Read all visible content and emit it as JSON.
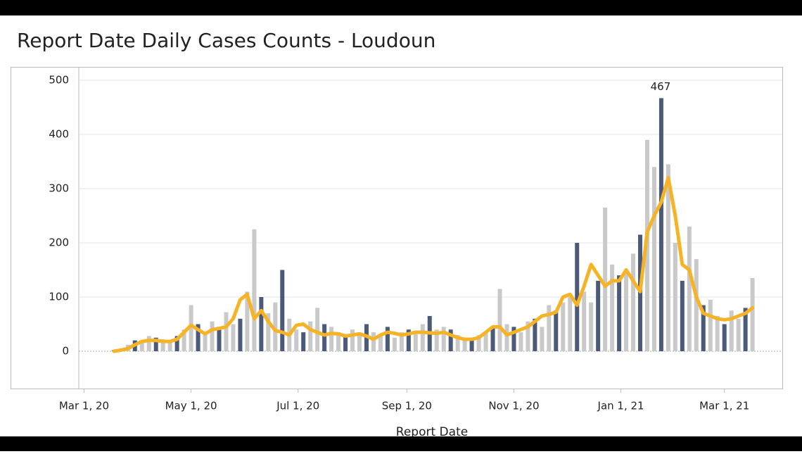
{
  "chart_data": {
    "type": "bar",
    "title": "Report Date Daily Cases Counts - Loudoun",
    "xlabel": "Report Date",
    "x": [
      17,
      21,
      25,
      29,
      33,
      37,
      41,
      45,
      49,
      53,
      57,
      61,
      65,
      69,
      73,
      77,
      81,
      85,
      89,
      93,
      97,
      101,
      105,
      109,
      113,
      117,
      121,
      125,
      129,
      133,
      137,
      141,
      145,
      149,
      153,
      157,
      161,
      165,
      169,
      173,
      177,
      181,
      185,
      189,
      193,
      197,
      201,
      205,
      209,
      213,
      217,
      221,
      225,
      229,
      233,
      237,
      241,
      245,
      249,
      253,
      257,
      261,
      265,
      269,
      273,
      277,
      281,
      285,
      289,
      293,
      297,
      301,
      305,
      309,
      313,
      317,
      321,
      325,
      329,
      333,
      337,
      341,
      345,
      349,
      353,
      357,
      361,
      365,
      369,
      373,
      377,
      381
    ],
    "series": [
      {
        "type": "bar",
        "color": "#c9c9c9",
        "values": [
          2,
          5,
          12,
          20,
          18,
          28,
          25,
          22,
          20,
          28,
          40,
          85,
          50,
          30,
          55,
          45,
          72,
          50,
          60,
          110,
          225,
          100,
          70,
          90,
          150,
          60,
          40,
          35,
          55,
          80,
          50,
          45,
          35,
          30,
          40,
          35,
          50,
          35,
          30,
          45,
          25,
          35,
          40,
          35,
          50,
          65,
          40,
          45,
          40,
          30,
          25,
          25,
          30,
          35,
          45,
          115,
          50,
          45,
          35,
          55,
          60,
          45,
          85,
          75,
          90,
          100,
          200,
          110,
          90,
          130,
          265,
          160,
          140,
          150,
          180,
          215,
          390,
          340,
          467,
          345,
          200,
          130,
          230,
          170,
          85,
          95,
          65,
          50,
          75,
          60,
          80,
          135
        ]
      },
      {
        "type": "line",
        "color": "#f5b325",
        "values": [
          0,
          2,
          5,
          12,
          18,
          20,
          20,
          18,
          18,
          22,
          35,
          48,
          40,
          32,
          40,
          42,
          45,
          60,
          95,
          105,
          60,
          75,
          55,
          38,
          35,
          30,
          48,
          50,
          40,
          35,
          30,
          33,
          32,
          28,
          30,
          32,
          28,
          22,
          30,
          35,
          33,
          30,
          32,
          35,
          35,
          34,
          33,
          35,
          30,
          25,
          22,
          22,
          25,
          35,
          45,
          45,
          30,
          35,
          40,
          45,
          55,
          65,
          68,
          72,
          100,
          105,
          85,
          120,
          160,
          140,
          120,
          130,
          130,
          150,
          130,
          110,
          220,
          250,
          275,
          320,
          250,
          160,
          150,
          100,
          70,
          65,
          60,
          58,
          60,
          65,
          70,
          80
        ]
      }
    ],
    "annotations": [
      {
        "x": 329,
        "y": 467
      }
    ],
    "xlim": [
      -3,
      398
    ],
    "xticks": [
      {
        "value": 0,
        "label": "Mar 1, 20"
      },
      {
        "value": 61,
        "label": "May 1, 20"
      },
      {
        "value": 122,
        "label": "Jul 1, 20"
      },
      {
        "value": 184,
        "label": "Sep 1, 20"
      },
      {
        "value": 245,
        "label": "Nov 1, 20"
      },
      {
        "value": 306,
        "label": "Jan 1, 21"
      },
      {
        "value": 365,
        "label": "Mar 1, 21"
      }
    ],
    "ylim": [
      -70,
      500
    ],
    "yticks": [
      0,
      100,
      200,
      300,
      400,
      500
    ],
    "grid": true
  }
}
